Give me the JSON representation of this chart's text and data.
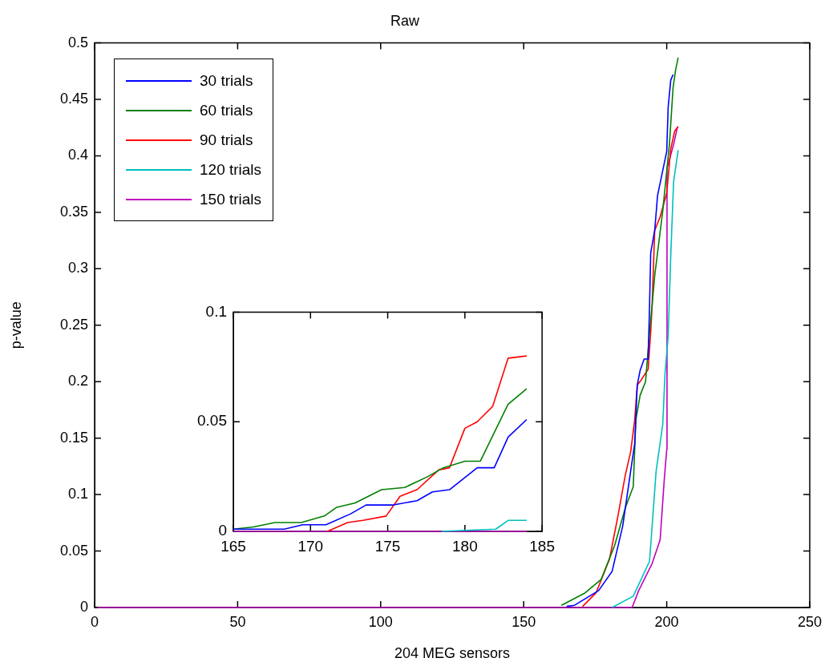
{
  "chart_data": [
    {
      "type": "line",
      "title": "Raw",
      "xlabel": "204 MEG sensors",
      "ylabel": "p-value",
      "xlim": [
        0,
        250
      ],
      "xticks": [
        0,
        50,
        100,
        150,
        200,
        250
      ],
      "ylim": [
        0,
        0.5
      ],
      "yticks": [
        0,
        0.05,
        0.1,
        0.15,
        0.2,
        0.25,
        0.3,
        0.35,
        0.4,
        0.45,
        0.5
      ],
      "legend": "top left",
      "series": [
        {
          "name": "30 trials",
          "color": "#0000ff",
          "x": [
            165,
            167.8,
            176.2,
            180.9,
            184.6,
            187.4,
            188.8,
            189.7,
            190.7,
            192.1,
            193.5,
            194,
            194.4,
            195.8,
            196.8,
            198.6,
            200,
            200.5,
            201.4,
            202.2
          ],
          "values": [
            0.001,
            0.002,
            0.015,
            0.032,
            0.072,
            0.121,
            0.145,
            0.197,
            0.21,
            0.22,
            0.22,
            0.268,
            0.314,
            0.334,
            0.365,
            0.387,
            0.404,
            0.443,
            0.467,
            0.472
          ]
        },
        {
          "name": "60 trials",
          "color": "#008000",
          "x": [
            163.2,
            171.5,
            177.1,
            181.8,
            185.5,
            188.3,
            189.2,
            190.7,
            192.6,
            194,
            194.9,
            195.8,
            198.6,
            201,
            202.2,
            203.1,
            204
          ],
          "values": [
            0.002,
            0.013,
            0.025,
            0.055,
            0.088,
            0.107,
            0.166,
            0.188,
            0.2,
            0.244,
            0.268,
            0.294,
            0.351,
            0.412,
            0.46,
            0.476,
            0.487
          ]
        },
        {
          "name": "90 trials",
          "color": "#ff0000",
          "x": [
            170.6,
            175.3,
            180,
            182.8,
            185.5,
            187.4,
            188.8,
            189.7,
            191.2,
            193.5,
            194.4,
            194.9,
            195.8,
            197.7,
            200,
            201.4,
            202.8,
            204
          ],
          "values": [
            0.001,
            0.013,
            0.043,
            0.079,
            0.117,
            0.138,
            0.166,
            0.197,
            0.202,
            0.211,
            0.244,
            0.268,
            0.334,
            0.346,
            0.367,
            0.406,
            0.422,
            0.426
          ]
        },
        {
          "name": "120 trials",
          "color": "#00bfbf",
          "x": [
            180.9,
            188.3,
            194,
            196.3,
            198.6,
            199.4,
            200.5,
            201.4,
            202.4,
            204
          ],
          "values": [
            0,
            0.01,
            0.041,
            0.121,
            0.162,
            0.207,
            0.24,
            0.311,
            0.377,
            0.405
          ]
        },
        {
          "name": "150 trials",
          "color": "#bf00bf",
          "x": [
            1,
            187.9,
            190.2,
            194.9,
            197.7,
            199.1,
            200,
            200.1,
            202.4,
            203.8
          ],
          "values": [
            0,
            0,
            0.015,
            0.039,
            0.06,
            0.112,
            0.14,
            0.389,
            0.41,
            0.426
          ]
        }
      ]
    },
    {
      "type": "line",
      "xlim": [
        165,
        185
      ],
      "xticks": [
        165,
        170,
        175,
        180,
        185
      ],
      "ylim": [
        0,
        0.1
      ],
      "yticks": [
        0,
        0.05,
        0.1
      ],
      "series": [
        {
          "color": "#0000ff",
          "x": [
            165,
            168.3,
            169.5,
            171,
            172.6,
            173.6,
            175.3,
            176.9,
            177.9,
            179,
            180.8,
            181.9,
            182.8,
            184
          ],
          "values": [
            0.001,
            0.001,
            0.003,
            0.003,
            0.008,
            0.012,
            0.012,
            0.014,
            0.018,
            0.019,
            0.029,
            0.029,
            0.043,
            0.051
          ]
        },
        {
          "color": "#008000",
          "x": [
            165,
            166.3,
            167.7,
            169.4,
            170.9,
            171.7,
            172.9,
            174.6,
            176.1,
            177.6,
            178.6,
            180,
            181,
            182.8,
            184
          ],
          "values": [
            0.001,
            0.002,
            0.004,
            0.004,
            0.007,
            0.011,
            0.013,
            0.019,
            0.02,
            0.025,
            0.029,
            0.032,
            0.032,
            0.058,
            0.065
          ]
        },
        {
          "color": "#ff0000",
          "x": [
            171.1,
            172.4,
            173.4,
            174.9,
            175.8,
            176.9,
            178.3,
            179,
            180,
            180.8,
            181.8,
            182.8,
            184
          ],
          "values": [
            0,
            0.004,
            0.005,
            0.007,
            0.016,
            0.019,
            0.028,
            0.029,
            0.047,
            0.05,
            0.057,
            0.079,
            0.08
          ]
        },
        {
          "color": "#00bfbf",
          "x": [
            178.5,
            182,
            182.8,
            184
          ],
          "values": [
            0,
            0.001,
            0.005,
            0.005
          ]
        },
        {
          "color": "#bf00bf",
          "x": [
            165,
            184
          ],
          "values": [
            0,
            0
          ]
        }
      ]
    }
  ]
}
